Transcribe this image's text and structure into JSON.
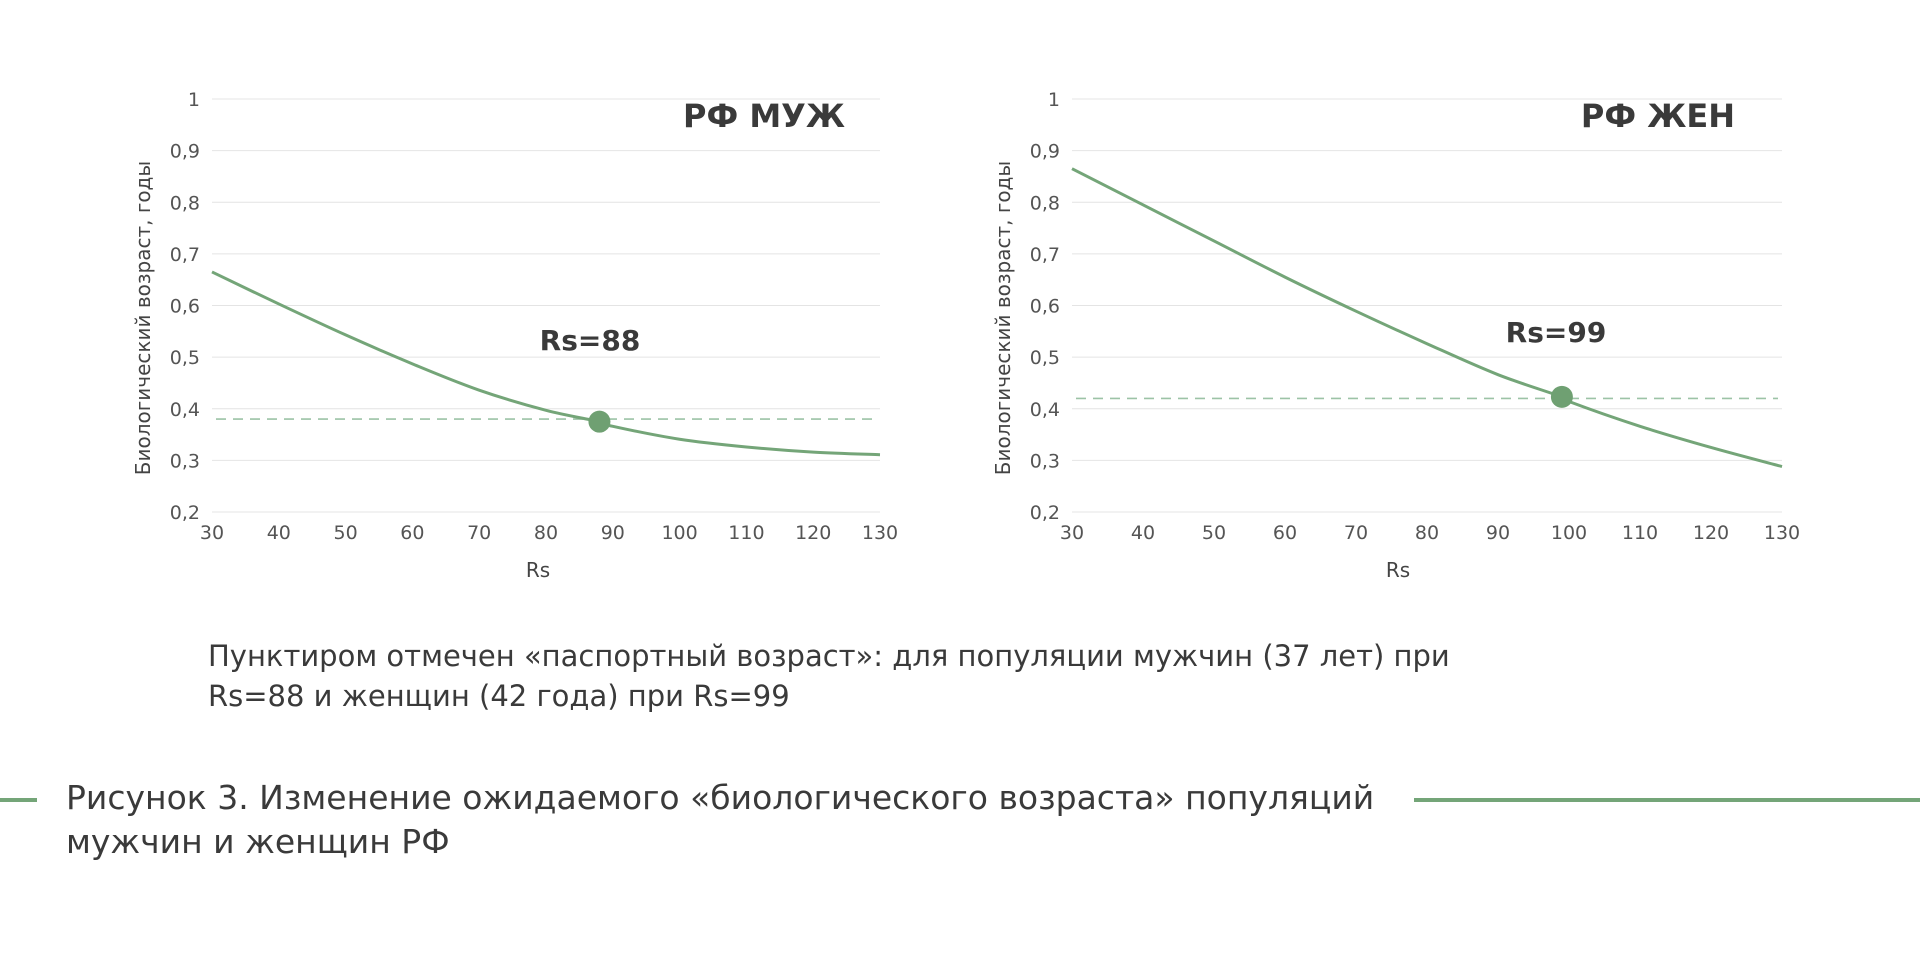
{
  "note": {
    "line1": "Пунктиром отмечен «паспортный возраст»: для популяции мужчин (37 лет) при",
    "line2": "Rs=88 и женщин (42 года) при Rs=99"
  },
  "caption": {
    "line1": "Рисунок 3. Изменение ожидаемого «биологического возраста» популяций",
    "line2": "мужчин и женщин РФ"
  },
  "colors": {
    "curve": "#74a578",
    "marker": "#6fa072",
    "dashed": "#9cc3a6",
    "grid": "#e4e4e4"
  },
  "chart_data": [
    {
      "type": "line",
      "title": "РФ МУЖ",
      "xlabel": "Rs",
      "ylabel": "Биологический возраст, годы",
      "xlim": [
        30,
        130
      ],
      "ylim": [
        0.2,
        1
      ],
      "x_ticks": [
        "30",
        "40",
        "50",
        "60",
        "70",
        "80",
        "90",
        "100",
        "110",
        "120",
        "130"
      ],
      "y_ticks": [
        "0,2",
        "0,3",
        "0,4",
        "0,5",
        "0,6",
        "0,7",
        "0,8",
        "0,9",
        "1"
      ],
      "grid": true,
      "series": [
        {
          "x": [
            30,
            40,
            50,
            60,
            70,
            80,
            88,
            90,
            100,
            110,
            120,
            130
          ],
          "y": [
            0.665,
            0.603,
            0.543,
            0.487,
            0.436,
            0.397,
            0.375,
            0.366,
            0.341,
            0.326,
            0.316,
            0.311
          ]
        }
      ],
      "reference_line": {
        "y": 0.38,
        "style": "dashed"
      },
      "marker": {
        "x": 88,
        "y": 0.375
      },
      "annotation": "Rs=88"
    },
    {
      "type": "line",
      "title": "РФ ЖЕН",
      "xlabel": "Rs",
      "ylabel": "Биологический возраст, годы",
      "xlim": [
        30,
        130
      ],
      "ylim": [
        0.2,
        1
      ],
      "x_ticks": [
        "30",
        "40",
        "50",
        "60",
        "70",
        "80",
        "90",
        "100",
        "110",
        "120",
        "130"
      ],
      "y_ticks": [
        "0,2",
        "0,3",
        "0,4",
        "0,5",
        "0,6",
        "0,7",
        "0,8",
        "0,9",
        "1"
      ],
      "grid": true,
      "series": [
        {
          "x": [
            30,
            40,
            50,
            60,
            70,
            80,
            90,
            99,
            100,
            110,
            120,
            130
          ],
          "y": [
            0.865,
            0.795,
            0.725,
            0.655,
            0.589,
            0.526,
            0.466,
            0.423,
            0.414,
            0.366,
            0.325,
            0.288
          ]
        }
      ],
      "reference_line": {
        "y": 0.42,
        "style": "dashed"
      },
      "marker": {
        "x": 99,
        "y": 0.423
      },
      "annotation": "Rs=99"
    }
  ]
}
